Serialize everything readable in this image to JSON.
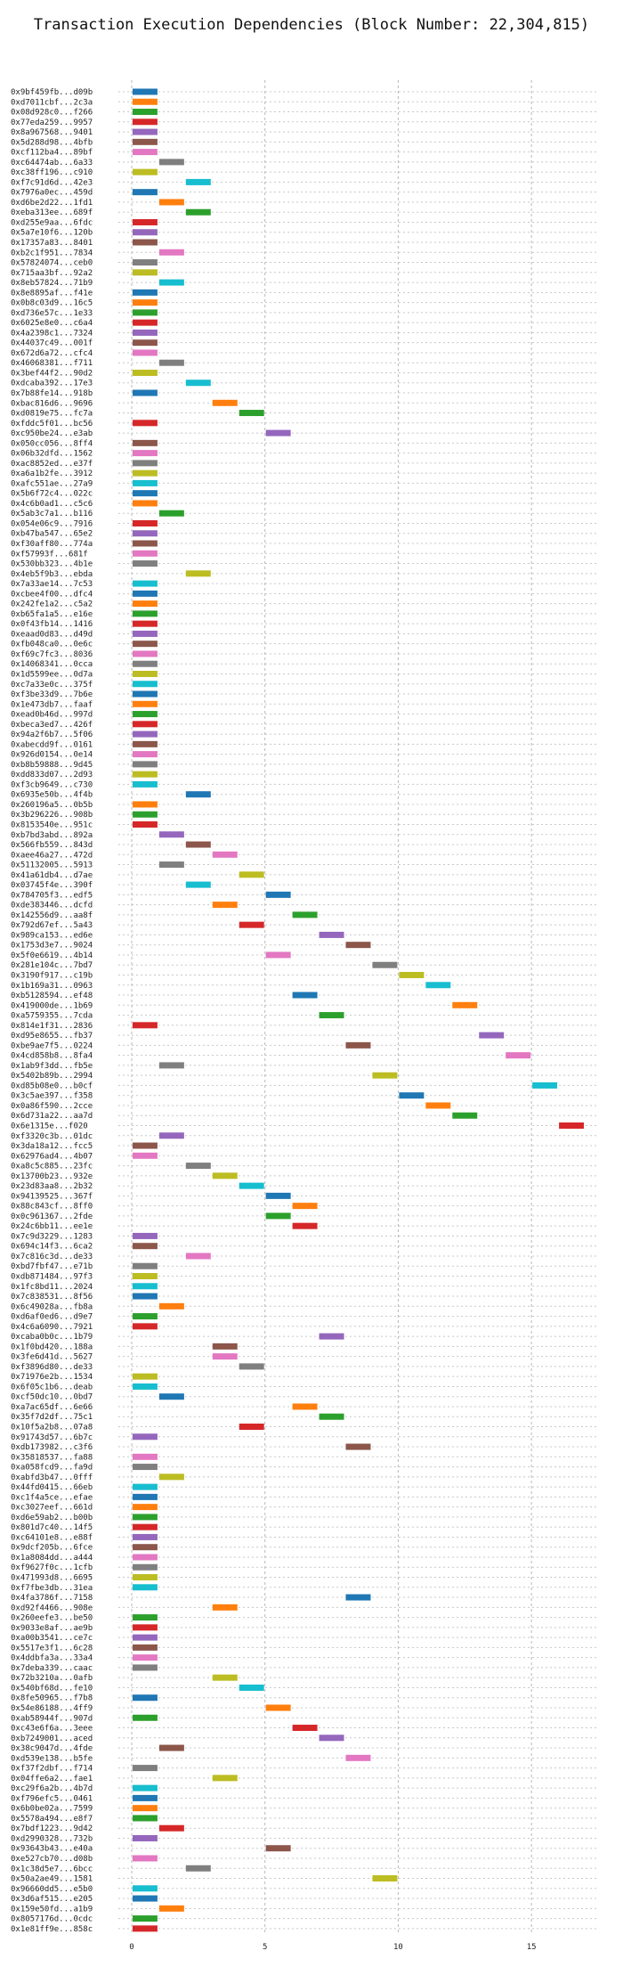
{
  "chart_data": {
    "type": "bar",
    "orientation": "horizontal",
    "subtype": "gantt",
    "title": "Transaction Execution Dependencies (Block Number: 22,304,815)",
    "xlabel": "",
    "ylabel": "",
    "xlim": [
      -0.5,
      17.5
    ],
    "xticks": [
      0,
      5,
      10,
      15
    ],
    "grid": true,
    "bar_span": 1,
    "palette": [
      "#1f77b4",
      "#ff7f0e",
      "#2ca02c",
      "#d62728",
      "#9467bd",
      "#8c564b",
      "#e377c2",
      "#7f7f7f",
      "#bcbd22",
      "#17becf"
    ],
    "transactions": [
      {
        "label": "0x9bf459fb...d09b",
        "start": 0
      },
      {
        "label": "0xd7011cbf...2c3a",
        "start": 0
      },
      {
        "label": "0x08d928c0...f266",
        "start": 0
      },
      {
        "label": "0x77eda259...9957",
        "start": 0
      },
      {
        "label": "0x8a967568...9401",
        "start": 0
      },
      {
        "label": "0x5d288d98...4bfb",
        "start": 0
      },
      {
        "label": "0xcf112ba4...89bf",
        "start": 0
      },
      {
        "label": "0xc64474ab...6a33",
        "start": 1
      },
      {
        "label": "0xc38ff196...c910",
        "start": 0
      },
      {
        "label": "0xf7c91d6d...42e3",
        "start": 2
      },
      {
        "label": "0x7976a0ec...459d",
        "start": 0
      },
      {
        "label": "0xd6be2d22...1fd1",
        "start": 1
      },
      {
        "label": "0xeba313ee...689f",
        "start": 2
      },
      {
        "label": "0xd255e9aa...6fdc",
        "start": 0
      },
      {
        "label": "0x5a7e10f6...120b",
        "start": 0
      },
      {
        "label": "0x17357a83...8401",
        "start": 0
      },
      {
        "label": "0xb2c1f951...7834",
        "start": 1
      },
      {
        "label": "0x57824074...ceb0",
        "start": 0
      },
      {
        "label": "0x715aa3bf...92a2",
        "start": 0
      },
      {
        "label": "0x8eb57824...71b9",
        "start": 1
      },
      {
        "label": "0x8e8895af...f41e",
        "start": 0
      },
      {
        "label": "0x0b8c03d9...16c5",
        "start": 0
      },
      {
        "label": "0xd736e57c...1e33",
        "start": 0
      },
      {
        "label": "0x6025e8e0...c6a4",
        "start": 0
      },
      {
        "label": "0x4a2398c1...7324",
        "start": 0
      },
      {
        "label": "0x44037c49...001f",
        "start": 0
      },
      {
        "label": "0x672d6a72...cfc4",
        "start": 0
      },
      {
        "label": "0x46068381...f711",
        "start": 1
      },
      {
        "label": "0x3bef44f2...90d2",
        "start": 0
      },
      {
        "label": "0xdcaba392...17e3",
        "start": 2
      },
      {
        "label": "0x7b88fe14...918b",
        "start": 0
      },
      {
        "label": "0xbac816d6...9696",
        "start": 3
      },
      {
        "label": "0xd0819e75...fc7a",
        "start": 4
      },
      {
        "label": "0xfddc5f01...bc56",
        "start": 0
      },
      {
        "label": "0xc950be24...e3ab",
        "start": 5
      },
      {
        "label": "0x050cc056...8ff4",
        "start": 0
      },
      {
        "label": "0x06b32dfd...1562",
        "start": 0
      },
      {
        "label": "0xac8852ed...e37f",
        "start": 0
      },
      {
        "label": "0xa6a1b2fe...3912",
        "start": 0
      },
      {
        "label": "0xafc551ae...27a9",
        "start": 0
      },
      {
        "label": "0x5b6f72c4...022c",
        "start": 0
      },
      {
        "label": "0x4c6b0ad1...c5c6",
        "start": 0
      },
      {
        "label": "0x5ab3c7a1...b116",
        "start": 1
      },
      {
        "label": "0x054e06c9...7916",
        "start": 0
      },
      {
        "label": "0xb47ba547...65e2",
        "start": 0
      },
      {
        "label": "0xf30aff80...774a",
        "start": 0
      },
      {
        "label": "0xf57993f...681f",
        "start": 0
      },
      {
        "label": "0x530bb323...4b1e",
        "start": 0
      },
      {
        "label": "0x4eb5f9b3...ebda",
        "start": 2
      },
      {
        "label": "0x7a33ae14...7c53",
        "start": 0
      },
      {
        "label": "0xcbee4f00...dfc4",
        "start": 0
      },
      {
        "label": "0x242fe1a2...c5a2",
        "start": 0
      },
      {
        "label": "0xb65fa1a5...e16e",
        "start": 0
      },
      {
        "label": "0x0f43fb14...1416",
        "start": 0
      },
      {
        "label": "0xeaad0d83...d49d",
        "start": 0
      },
      {
        "label": "0xfb048ca0...0e6c",
        "start": 0
      },
      {
        "label": "0xf69c7fc3...8036",
        "start": 0
      },
      {
        "label": "0x14068341...0cca",
        "start": 0
      },
      {
        "label": "0x1d5599ee...0d7a",
        "start": 0
      },
      {
        "label": "0xc7a33e0c...375f",
        "start": 0
      },
      {
        "label": "0xf3be33d9...7b6e",
        "start": 0
      },
      {
        "label": "0x1e473db7...faaf",
        "start": 0
      },
      {
        "label": "0xead0b46d...997d",
        "start": 0
      },
      {
        "label": "0xbeca3ed7...426f",
        "start": 0
      },
      {
        "label": "0x94a2f6b7...5f06",
        "start": 0
      },
      {
        "label": "0xabecdd9f...0161",
        "start": 0
      },
      {
        "label": "0x926d0154...0e14",
        "start": 0
      },
      {
        "label": "0xb8b59888...9d45",
        "start": 0
      },
      {
        "label": "0xdd833d07...2d93",
        "start": 0
      },
      {
        "label": "0xf3cb9649...c730",
        "start": 0
      },
      {
        "label": "0x6935e50b...4f4b",
        "start": 2
      },
      {
        "label": "0x260196a5...0b5b",
        "start": 0
      },
      {
        "label": "0x3b296226...908b",
        "start": 0
      },
      {
        "label": "0x8153540e...951c",
        "start": 0
      },
      {
        "label": "0xb7bd3abd...892a",
        "start": 1
      },
      {
        "label": "0x566fb559...843d",
        "start": 2
      },
      {
        "label": "0xaee46a27...472d",
        "start": 3
      },
      {
        "label": "0x51132005...5913",
        "start": 1
      },
      {
        "label": "0x41a61db4...d7ae",
        "start": 4
      },
      {
        "label": "0x03745f4e...390f",
        "start": 2
      },
      {
        "label": "0x784705f3...edf5",
        "start": 5
      },
      {
        "label": "0xde383446...dcfd",
        "start": 3
      },
      {
        "label": "0x142556d9...aa8f",
        "start": 6
      },
      {
        "label": "0x792d67ef...5a43",
        "start": 4
      },
      {
        "label": "0x989ca153...ed6e",
        "start": 7
      },
      {
        "label": "0x1753d3e7...9024",
        "start": 8
      },
      {
        "label": "0x5f0e6619...4b14",
        "start": 5
      },
      {
        "label": "0x281e104c...7bd7",
        "start": 9
      },
      {
        "label": "0x3190f917...c19b",
        "start": 10
      },
      {
        "label": "0x1b169a31...0963",
        "start": 11
      },
      {
        "label": "0xb5128594...ef48",
        "start": 6
      },
      {
        "label": "0x419000de...1b69",
        "start": 12
      },
      {
        "label": "0xa5759355...7cda",
        "start": 7
      },
      {
        "label": "0x814e1f31...2836",
        "start": 0
      },
      {
        "label": "0xd95e8655...fb37",
        "start": 13
      },
      {
        "label": "0xbe9ae7f5...0224",
        "start": 8
      },
      {
        "label": "0x4cd858b8...8fa4",
        "start": 14
      },
      {
        "label": "0x1ab9f3dd...fb5e",
        "start": 1
      },
      {
        "label": "0x5402b89b...2994",
        "start": 9
      },
      {
        "label": "0xd85b08e0...b0cf",
        "start": 15
      },
      {
        "label": "0x3c5ae397...f358",
        "start": 10
      },
      {
        "label": "0x0a86f590...2cce",
        "start": 11
      },
      {
        "label": "0x6d731a22...aa7d",
        "start": 12
      },
      {
        "label": "0x6e1315e...f020",
        "start": 16
      },
      {
        "label": "0xf3320c3b...01dc",
        "start": 1
      },
      {
        "label": "0x3da18a12...fcc5",
        "start": 0
      },
      {
        "label": "0x62976ad4...4b07",
        "start": 0
      },
      {
        "label": "0xa8c5c885...23fc",
        "start": 2
      },
      {
        "label": "0x13700b23...932e",
        "start": 3
      },
      {
        "label": "0x23d83aa8...2b32",
        "start": 4
      },
      {
        "label": "0x94139525...367f",
        "start": 5
      },
      {
        "label": "0x88c843cf...8ff0",
        "start": 6
      },
      {
        "label": "0x0c961367...2fde",
        "start": 5
      },
      {
        "label": "0x24c6bb11...ee1e",
        "start": 6
      },
      {
        "label": "0x7c9d3229...1283",
        "start": 0
      },
      {
        "label": "0x694c14f3...6ca2",
        "start": 0
      },
      {
        "label": "0x7c816c3d...de33",
        "start": 2
      },
      {
        "label": "0xbd7fbf47...e71b",
        "start": 0
      },
      {
        "label": "0xdb871484...97f3",
        "start": 0
      },
      {
        "label": "0x1fc8bd11...2024",
        "start": 0
      },
      {
        "label": "0x7c838531...8f56",
        "start": 0
      },
      {
        "label": "0x6c49028a...fb8a",
        "start": 1
      },
      {
        "label": "0xd6af0ed6...d9e7",
        "start": 0
      },
      {
        "label": "0x4c6a6090...7921",
        "start": 0
      },
      {
        "label": "0xcaba0b0c...1b79",
        "start": 7
      },
      {
        "label": "0x1f0bd420...188a",
        "start": 3
      },
      {
        "label": "0x3fe6d41d...5627",
        "start": 3
      },
      {
        "label": "0xf3896d80...de33",
        "start": 4
      },
      {
        "label": "0x71976e2b...1534",
        "start": 0
      },
      {
        "label": "0x6f05c1b6...deab",
        "start": 0
      },
      {
        "label": "0xcf50dc10...0bd7",
        "start": 1
      },
      {
        "label": "0xa7ac65df...6e66",
        "start": 6
      },
      {
        "label": "0x35f7d2df...75c1",
        "start": 7
      },
      {
        "label": "0x10f5a2b8...07a8",
        "start": 4
      },
      {
        "label": "0x91743d57...6b7c",
        "start": 0
      },
      {
        "label": "0xdb173982...c3f6",
        "start": 8
      },
      {
        "label": "0x35818537...fa88",
        "start": 0
      },
      {
        "label": "0xa058fcd9...fa9d",
        "start": 0
      },
      {
        "label": "0xabfd3b47...0fff",
        "start": 1
      },
      {
        "label": "0x44fd0415...66eb",
        "start": 0
      },
      {
        "label": "0xc1f4a5ce...efae",
        "start": 0
      },
      {
        "label": "0xc3027eef...661d",
        "start": 0
      },
      {
        "label": "0xd6e59ab2...b00b",
        "start": 0
      },
      {
        "label": "0x801d7c40...14f5",
        "start": 0
      },
      {
        "label": "0xc64101e8...e88f",
        "start": 0
      },
      {
        "label": "0x9dcf205b...6fce",
        "start": 0
      },
      {
        "label": "0x1a8084dd...a444",
        "start": 0
      },
      {
        "label": "0xf9627f0c...1cfb",
        "start": 0
      },
      {
        "label": "0x471993d8...6695",
        "start": 0
      },
      {
        "label": "0xf7fbe3db...31ea",
        "start": 0
      },
      {
        "label": "0x4fa3786f...7158",
        "start": 8
      },
      {
        "label": "0xd92f4466...908e",
        "start": 3
      },
      {
        "label": "0x260eefe3...be50",
        "start": 0
      },
      {
        "label": "0x9033e8af...ae9b",
        "start": 0
      },
      {
        "label": "0xa00b3541...ce7c",
        "start": 0
      },
      {
        "label": "0x5517e3f1...6c28",
        "start": 0
      },
      {
        "label": "0x4ddbfa3a...33a4",
        "start": 0
      },
      {
        "label": "0x7deba339...caac",
        "start": 0
      },
      {
        "label": "0x72b3210a...0afb",
        "start": 3
      },
      {
        "label": "0x540bf68d...fe10",
        "start": 4
      },
      {
        "label": "0x8fe50965...f7b8",
        "start": 0
      },
      {
        "label": "0x54e86188...4ff9",
        "start": 5
      },
      {
        "label": "0xab58944f...907d",
        "start": 0
      },
      {
        "label": "0xc43e6f6a...3eee",
        "start": 6
      },
      {
        "label": "0xb7249001...aced",
        "start": 7
      },
      {
        "label": "0x38c9047d...4fde",
        "start": 1
      },
      {
        "label": "0xd539e138...b5fe",
        "start": 8
      },
      {
        "label": "0xf37f2dbf...f714",
        "start": 0
      },
      {
        "label": "0x04ffe6a2...fae1",
        "start": 3
      },
      {
        "label": "0xc29f6a2b...4b7d",
        "start": 0
      },
      {
        "label": "0xf796efc5...0461",
        "start": 0
      },
      {
        "label": "0x6b0be02a...7599",
        "start": 0
      },
      {
        "label": "0x5578a494...e8f7",
        "start": 0
      },
      {
        "label": "0x7bdf1223...9d42",
        "start": 1
      },
      {
        "label": "0xd2990328...732b",
        "start": 0
      },
      {
        "label": "0x93643b43...e40a",
        "start": 5
      },
      {
        "label": "0xe527cb70...d08b",
        "start": 0
      },
      {
        "label": "0x1c38d5e7...6bcc",
        "start": 2
      },
      {
        "label": "0x50a2ae49...1581",
        "start": 9
      },
      {
        "label": "0x96660dd5...e5b0",
        "start": 0
      },
      {
        "label": "0x3d6af515...e205",
        "start": 0
      },
      {
        "label": "0x159e50fd...a1b9",
        "start": 1
      },
      {
        "label": "0x8057176d...0cdc",
        "start": 0
      },
      {
        "label": "0x1e81ff9e...858c",
        "start": 0
      }
    ]
  }
}
